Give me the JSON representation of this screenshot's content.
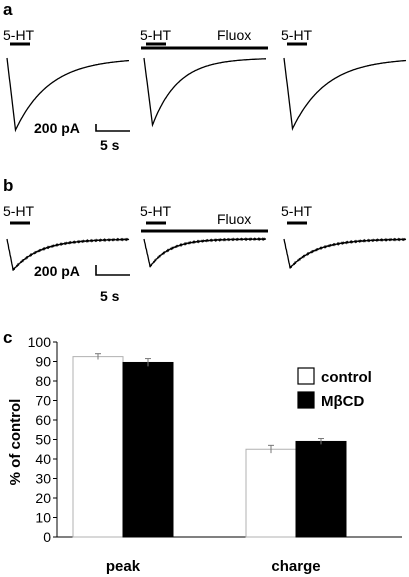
{
  "panels": {
    "a": {
      "letter": "a",
      "stim_label": "5-HT",
      "drug_label": "Fluox",
      "scale_current": "200 pA",
      "scale_time": "5 s",
      "trace_peaks_relative": [
        1.0,
        0.93,
        0.98
      ]
    },
    "b": {
      "letter": "b",
      "stim_label": "5-HT",
      "drug_label": "Fluox",
      "scale_current": "200 pA",
      "scale_time": "5 s",
      "trace_peaks_relative": [
        1.0,
        0.89,
        0.93
      ]
    },
    "c": {
      "letter": "c"
    }
  },
  "chart_data": {
    "type": "bar",
    "categories": [
      "peak",
      "charge"
    ],
    "series": [
      {
        "name": "control",
        "values": [
          92.5,
          45
        ],
        "errors": [
          1.5,
          2
        ],
        "color": "#ffffff"
      },
      {
        "name": "MβCD",
        "values": [
          89.5,
          49
        ],
        "errors": [
          2,
          1.5
        ],
        "color": "#000000"
      }
    ],
    "ylabel": "% of control",
    "ylim": [
      0,
      100
    ],
    "yticks": [
      0,
      10,
      20,
      30,
      40,
      50,
      60,
      70,
      80,
      90,
      100
    ],
    "legend_position": "top-right",
    "grid": false
  }
}
